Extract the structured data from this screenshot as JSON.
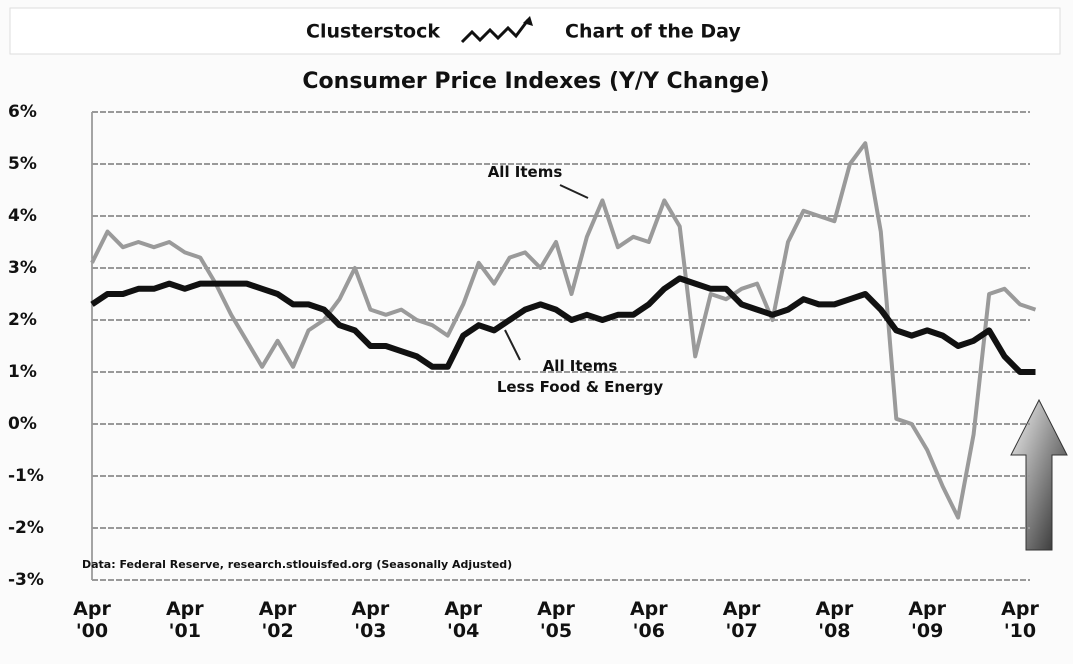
{
  "header": {
    "left": "Clusterstock",
    "right": "Chart of the Day"
  },
  "chart_data": {
    "type": "line",
    "title": "Consumer Price Indexes (Y/Y Change)",
    "categories": [
      "Apr '00",
      null,
      null,
      null,
      null,
      null,
      "Apr '01",
      null,
      null,
      null,
      null,
      null,
      "Apr '02",
      null,
      null,
      null,
      null,
      null,
      "Apr '03",
      null,
      null,
      null,
      null,
      null,
      "Apr '04",
      null,
      null,
      null,
      null,
      null,
      "Apr '05",
      null,
      null,
      null,
      null,
      null,
      "Apr '06",
      null,
      null,
      null,
      null,
      null,
      "Apr '07",
      null,
      null,
      null,
      null,
      null,
      "Apr '08",
      null,
      null,
      null,
      null,
      null,
      "Apr '09",
      null,
      null,
      null,
      null,
      null,
      "Apr '10",
      null
    ],
    "series": [
      {
        "name": "All Items",
        "color": "#9a9a9a",
        "values": [
          3.1,
          3.7,
          3.4,
          3.5,
          3.4,
          3.5,
          3.3,
          3.2,
          2.7,
          2.1,
          1.6,
          1.1,
          1.6,
          1.1,
          1.8,
          2.0,
          2.4,
          3.0,
          2.2,
          2.1,
          2.2,
          2.0,
          1.9,
          1.7,
          2.3,
          3.1,
          2.7,
          3.2,
          3.3,
          3.0,
          3.5,
          2.5,
          3.6,
          4.3,
          3.4,
          3.6,
          3.5,
          4.3,
          3.8,
          1.3,
          2.5,
          2.4,
          2.6,
          2.7,
          2.0,
          3.5,
          4.1,
          4.0,
          3.9,
          5.0,
          5.4,
          3.7,
          0.1,
          0.0,
          -0.5,
          -1.2,
          -1.8,
          -0.2,
          2.5,
          2.6,
          2.3,
          2.2
        ]
      },
      {
        "name": "All Items\nLess Food & Energy",
        "color": "#111111",
        "values": [
          2.3,
          2.5,
          2.5,
          2.6,
          2.6,
          2.7,
          2.6,
          2.7,
          2.7,
          2.7,
          2.7,
          2.6,
          2.5,
          2.3,
          2.3,
          2.2,
          1.9,
          1.8,
          1.5,
          1.5,
          1.4,
          1.3,
          1.1,
          1.1,
          1.7,
          1.9,
          1.8,
          2.0,
          2.2,
          2.3,
          2.2,
          2.0,
          2.1,
          2.0,
          2.1,
          2.1,
          2.3,
          2.6,
          2.8,
          2.7,
          2.6,
          2.6,
          2.3,
          2.2,
          2.1,
          2.2,
          2.4,
          2.3,
          2.3,
          2.4,
          2.5,
          2.2,
          1.8,
          1.7,
          1.8,
          1.7,
          1.5,
          1.6,
          1.8,
          1.3,
          1.0,
          1.0
        ]
      }
    ],
    "ylim": [
      -3,
      6
    ],
    "yticks": [
      {
        "value": -3,
        "label": "-3%"
      },
      {
        "value": -2,
        "label": "-2%"
      },
      {
        "value": -1,
        "label": "-1%"
      },
      {
        "value": 0,
        "label": "0%"
      },
      {
        "value": 1,
        "label": "1%"
      },
      {
        "value": 2,
        "label": "2%"
      },
      {
        "value": 3,
        "label": "3%"
      },
      {
        "value": 4,
        "label": "4%"
      },
      {
        "value": 5,
        "label": "5%"
      },
      {
        "value": 6,
        "label": "6%"
      }
    ],
    "grid": true,
    "source": "Data: Federal Reserve, research.stlouisfed.org (Seasonally Adjusted)"
  }
}
